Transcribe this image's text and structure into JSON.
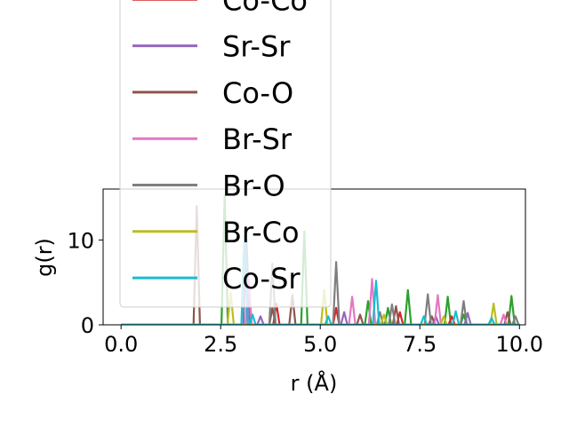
{
  "chart_data": {
    "type": "line",
    "title": "",
    "xlabel": "r (Å)",
    "ylabel": "g(r)",
    "xlim": [
      -0.45,
      10.15
    ],
    "ylim": [
      0,
      16
    ],
    "xticks": [
      "0.0",
      "2.5",
      "5.0",
      "7.5",
      "10.0"
    ],
    "xtick_values": [
      0,
      2.5,
      5,
      7.5,
      10
    ],
    "yticks": [
      "0",
      "10"
    ],
    "ytick_values": [
      0,
      10
    ],
    "grid": false,
    "legend_position": "upper-left (overflowing above axes)",
    "series": [
      {
        "name": "",
        "color": "#2ca02c",
        "peaks": [
          [
            2.6,
            15.2
          ],
          [
            4.6,
            11.0
          ],
          [
            6.2,
            2.8
          ],
          [
            6.7,
            2.0
          ],
          [
            7.2,
            4.1
          ],
          [
            8.2,
            3.3
          ],
          [
            8.6,
            1.2
          ],
          [
            9.8,
            3.4
          ]
        ]
      },
      {
        "name": "Co-Co",
        "color": "#d62728",
        "peaks": [
          [
            3.9,
            2.5
          ],
          [
            5.4,
            2.0
          ],
          [
            7.0,
            1.5
          ],
          [
            8.3,
            1.0
          ]
        ]
      },
      {
        "name": "Sr-Sr",
        "color": "#9467bd",
        "peaks": [
          [
            3.15,
            10.0
          ],
          [
            3.5,
            1.0
          ],
          [
            5.6,
            1.5
          ],
          [
            7.9,
            1.0
          ],
          [
            8.7,
            1.4
          ]
        ]
      },
      {
        "name": "Co-O",
        "color": "#8c564b",
        "peaks": [
          [
            1.9,
            14.0
          ],
          [
            3.8,
            2.0
          ],
          [
            4.3,
            3.5
          ],
          [
            6.0,
            1.2
          ],
          [
            6.9,
            2.2
          ],
          [
            7.8,
            1.0
          ],
          [
            9.7,
            1.5
          ]
        ]
      },
      {
        "name": "Br-Sr",
        "color": "#e377c2",
        "peaks": [
          [
            3.2,
            5.5
          ],
          [
            5.8,
            3.3
          ],
          [
            6.3,
            5.4
          ],
          [
            7.95,
            3.5
          ],
          [
            9.6,
            1.2
          ]
        ]
      },
      {
        "name": "Br-O",
        "color": "#7f7f7f",
        "peaks": [
          [
            3.8,
            7.2
          ],
          [
            5.4,
            7.4
          ],
          [
            6.5,
            1.5
          ],
          [
            6.8,
            2.4
          ],
          [
            7.7,
            3.6
          ],
          [
            8.6,
            2.8
          ],
          [
            9.9,
            1.0
          ]
        ]
      },
      {
        "name": "Br-Co",
        "color": "#bcbd22",
        "peaks": [
          [
            2.75,
            3.8
          ],
          [
            5.1,
            4.1
          ],
          [
            6.6,
            1.2
          ],
          [
            8.1,
            1.0
          ],
          [
            9.35,
            2.5
          ]
        ]
      },
      {
        "name": "Co-Sr",
        "color": "#17becf",
        "peaks": [
          [
            3.1,
            11.0
          ],
          [
            3.3,
            1.2
          ],
          [
            5.2,
            1.0
          ],
          [
            6.4,
            5.2
          ],
          [
            7.6,
            1.0
          ],
          [
            8.4,
            1.6
          ],
          [
            9.3,
            0.8
          ]
        ]
      }
    ]
  }
}
